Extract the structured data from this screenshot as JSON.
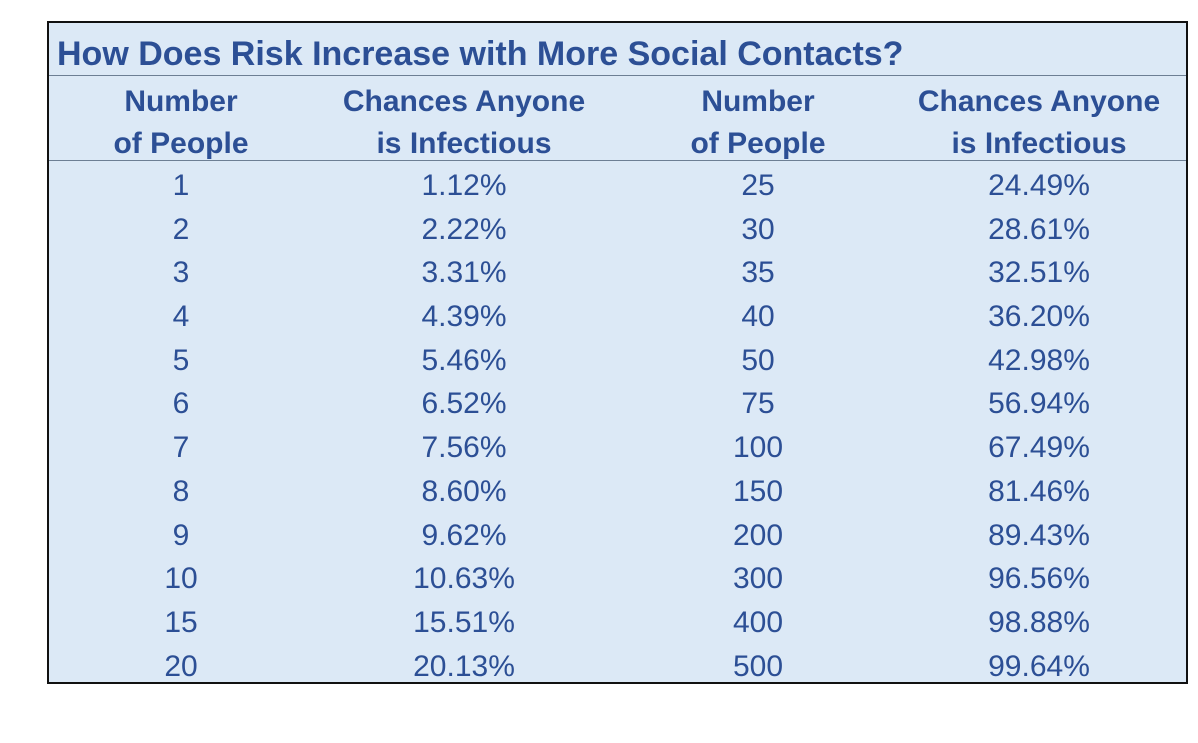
{
  "chart_data": {
    "type": "table",
    "title": "How Does Risk Increase with More Social Contacts?",
    "columns": [
      [
        "Number",
        "of People"
      ],
      [
        "Chances Anyone",
        "is Infectious"
      ],
      [
        "Number",
        "of People"
      ],
      [
        "Chances Anyone",
        "is Infectious"
      ]
    ],
    "rows": [
      [
        "1",
        "1.12%",
        "25",
        "24.49%"
      ],
      [
        "2",
        "2.22%",
        "30",
        "28.61%"
      ],
      [
        "3",
        "3.31%",
        "35",
        "32.51%"
      ],
      [
        "4",
        "4.39%",
        "40",
        "36.20%"
      ],
      [
        "5",
        "5.46%",
        "50",
        "42.98%"
      ],
      [
        "6",
        "6.52%",
        "75",
        "56.94%"
      ],
      [
        "7",
        "7.56%",
        "100",
        "67.49%"
      ],
      [
        "8",
        "8.60%",
        "150",
        "81.46%"
      ],
      [
        "9",
        "9.62%",
        "200",
        "89.43%"
      ],
      [
        "10",
        "10.63%",
        "300",
        "96.56%"
      ],
      [
        "15",
        "15.51%",
        "400",
        "98.88%"
      ],
      [
        "20",
        "20.13%",
        "500",
        "99.64%"
      ]
    ],
    "colors": {
      "text": "#2c4f95",
      "background": "#dce9f6",
      "border": "#111111"
    }
  }
}
